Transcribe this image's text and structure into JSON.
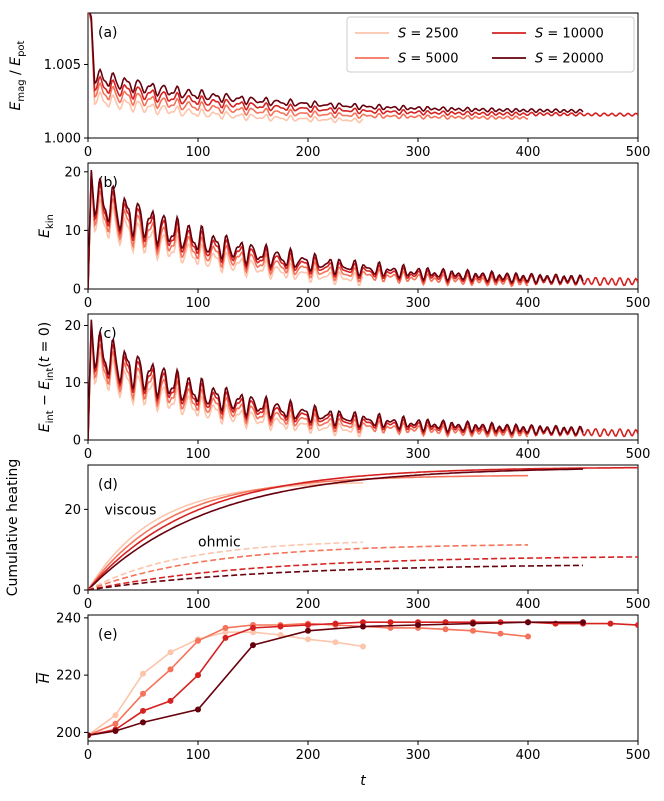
{
  "chart_data": {
    "type": "line",
    "x_label": "t",
    "legend": {
      "placement": "top-right",
      "entries": [
        {
          "label": "S = 2500",
          "color": "#fcc5ac"
        },
        {
          "label": "S = 5000",
          "color": "#f4735a"
        },
        {
          "label": "S = 10000",
          "color": "#d52221"
        },
        {
          "label": "S = 20000",
          "color": "#67000d"
        }
      ]
    },
    "series": [
      {
        "name": "S = 2500",
        "color": "#fcc5ac",
        "t_end": 250
      },
      {
        "name": "S = 5000",
        "color": "#f4735a",
        "t_end": 400
      },
      {
        "name": "S = 10000",
        "color": "#d52221",
        "t_end": 500
      },
      {
        "name": "S = 20000",
        "color": "#67000d",
        "t_end": 450
      }
    ],
    "panels": [
      {
        "tag": "(a)",
        "ylabel_main": "E",
        "ylabel_sub1": "mag",
        "ylabel_mid": " / E",
        "ylabel_sub2": "pot",
        "xlim": [
          0,
          500
        ],
        "ylim": [
          1.0,
          1.0085
        ],
        "xticks": [
          "0",
          "100",
          "200",
          "300",
          "400",
          "500"
        ],
        "yticks": [
          {
            "value": 1.0,
            "label": "1.000"
          },
          {
            "value": 1.005,
            "label": "1.005"
          }
        ],
        "osc_period": 11.5,
        "curves": [
          {
            "peak": 1.0078,
            "base": 1.0033,
            "asym": 1.00125,
            "tau": 110,
            "amp": 0.00045,
            "offset": -0.0005
          },
          {
            "peak": 1.0079,
            "base": 1.0036,
            "asym": 1.0014,
            "tau": 115,
            "amp": 0.0005,
            "offset": -0.00025
          },
          {
            "peak": 1.008,
            "base": 1.0038,
            "asym": 1.00155,
            "tau": 120,
            "amp": 0.0005,
            "offset": 0.0
          },
          {
            "peak": 1.0082,
            "base": 1.0041,
            "asym": 1.0017,
            "tau": 125,
            "amp": 0.0005,
            "offset": 0.0002
          }
        ]
      },
      {
        "tag": "(b)",
        "ylabel_main": "E",
        "ylabel_sub1": "kin",
        "xlim": [
          0,
          500
        ],
        "ylim": [
          0,
          21.5
        ],
        "xticks": [
          "0",
          "100",
          "200",
          "300",
          "400",
          "500"
        ],
        "yticks": [
          {
            "value": 0,
            "label": "0"
          },
          {
            "value": 10,
            "label": "10"
          },
          {
            "value": 20,
            "label": "20"
          }
        ],
        "osc_period": 11.5,
        "curves": [
          {
            "peak": 18.5,
            "base": 14.5,
            "asym": 0.6,
            "tau": 120,
            "amp": 3.0,
            "offset": -1.3
          },
          {
            "peak": 19.5,
            "base": 15.0,
            "asym": 0.8,
            "tau": 125,
            "amp": 3.2,
            "offset": -0.6
          },
          {
            "peak": 20.0,
            "base": 15.5,
            "asym": 0.9,
            "tau": 130,
            "amp": 3.3,
            "offset": 0.0
          },
          {
            "peak": 20.3,
            "base": 16.0,
            "asym": 1.0,
            "tau": 135,
            "amp": 3.4,
            "offset": 0.3
          }
        ]
      },
      {
        "tag": "(c)",
        "ylabel_main": "E",
        "ylabel_sub1": "int",
        "ylabel_mid": " − E",
        "ylabel_sub2": "int",
        "ylabel_tail": "(t = 0)",
        "xlim": [
          0,
          500
        ],
        "ylim": [
          0,
          22
        ],
        "xticks": [
          "0",
          "100",
          "200",
          "300",
          "400",
          "500"
        ],
        "yticks": [
          {
            "value": 0,
            "label": "0"
          },
          {
            "value": 10,
            "label": "10"
          },
          {
            "value": 20,
            "label": "20"
          }
        ],
        "osc_period": 11.5,
        "curves": [
          {
            "peak": 18.5,
            "base": 14.5,
            "asym": 0.6,
            "tau": 120,
            "amp": 3.0,
            "offset": -1.3
          },
          {
            "peak": 19.5,
            "base": 15.0,
            "asym": 0.8,
            "tau": 125,
            "amp": 3.2,
            "offset": -0.6
          },
          {
            "peak": 20.5,
            "base": 15.5,
            "asym": 0.9,
            "tau": 130,
            "amp": 3.3,
            "offset": 0.0
          },
          {
            "peak": 21.0,
            "base": 16.0,
            "asym": 1.0,
            "tau": 135,
            "amp": 3.4,
            "offset": 0.3
          }
        ]
      },
      {
        "tag": "(d)",
        "ylabel_main": "Cumulative heating",
        "xlim": [
          0,
          500
        ],
        "ylim": [
          0,
          31
        ],
        "xticks": [
          "0",
          "100",
          "200",
          "300",
          "400",
          "500"
        ],
        "yticks": [
          {
            "value": 0,
            "label": "0"
          },
          {
            "value": 20,
            "label": "20"
          }
        ],
        "annotations": [
          {
            "text": "viscous",
            "x": 15,
            "y": 20
          },
          {
            "text": "ohmic",
            "x": 100,
            "y": 12
          }
        ],
        "viscous": [
          {
            "a": 27.0,
            "tau": 60,
            "t_end": 250
          },
          {
            "a": 28.5,
            "tau": 75,
            "t_end": 400
          },
          {
            "a": 30.5,
            "tau": 95,
            "t_end": 500
          },
          {
            "a": 30.5,
            "tau": 110,
            "t_end": 450
          }
        ],
        "ohmic": [
          {
            "a": 12.5,
            "tau": 85,
            "t_end": 250
          },
          {
            "a": 11.5,
            "tau": 110,
            "t_end": 400
          },
          {
            "a": 8.5,
            "tau": 150,
            "t_end": 500
          },
          {
            "a": 6.5,
            "tau": 160,
            "t_end": 450
          }
        ]
      },
      {
        "tag": "(e)",
        "ylabel_main": "H",
        "xlim": [
          0,
          500
        ],
        "ylim": [
          197,
          241
        ],
        "xticks": [
          "0",
          "100",
          "200",
          "300",
          "400",
          "500"
        ],
        "yticks": [
          {
            "value": 200,
            "label": "200"
          },
          {
            "value": 220,
            "label": "220"
          },
          {
            "value": 240,
            "label": "240"
          }
        ],
        "markers": [
          {
            "x": [
              0,
              25,
              50,
              75,
              100,
              125,
              150,
              175,
              200,
              225,
              250
            ],
            "y": [
              199,
              206,
              220.5,
              228,
              232.5,
              235,
              235,
              234,
              232.5,
              231.5,
              230
            ]
          },
          {
            "x": [
              0,
              25,
              50,
              75,
              100,
              125,
              150,
              175,
              200,
              225,
              250,
              275,
              300,
              325,
              350,
              375,
              400
            ],
            "y": [
              199,
              203,
              213.5,
              222,
              232,
              236.5,
              237.5,
              237.5,
              238,
              237.5,
              237,
              236.5,
              236.5,
              236,
              235.5,
              234.5,
              233.5
            ]
          },
          {
            "x": [
              0,
              25,
              50,
              75,
              100,
              125,
              150,
              175,
              200,
              225,
              250,
              275,
              300,
              325,
              350,
              375,
              400,
              425,
              450,
              475,
              500
            ],
            "y": [
              199,
              201,
              207.5,
              211,
              220,
              233,
              236.5,
              237,
              237.5,
              238,
              238.5,
              238.5,
              238.5,
              238.5,
              238.5,
              238.5,
              238.5,
              238,
              238,
              238,
              237.5
            ]
          },
          {
            "x": [
              0,
              25,
              50,
              100,
              150,
              200,
              250,
              300,
              350,
              400,
              450
            ],
            "y": [
              199,
              200.5,
              203.5,
              208,
              230.5,
              235.5,
              237,
              237.5,
              238,
              238.5,
              238.5
            ]
          }
        ]
      }
    ]
  }
}
